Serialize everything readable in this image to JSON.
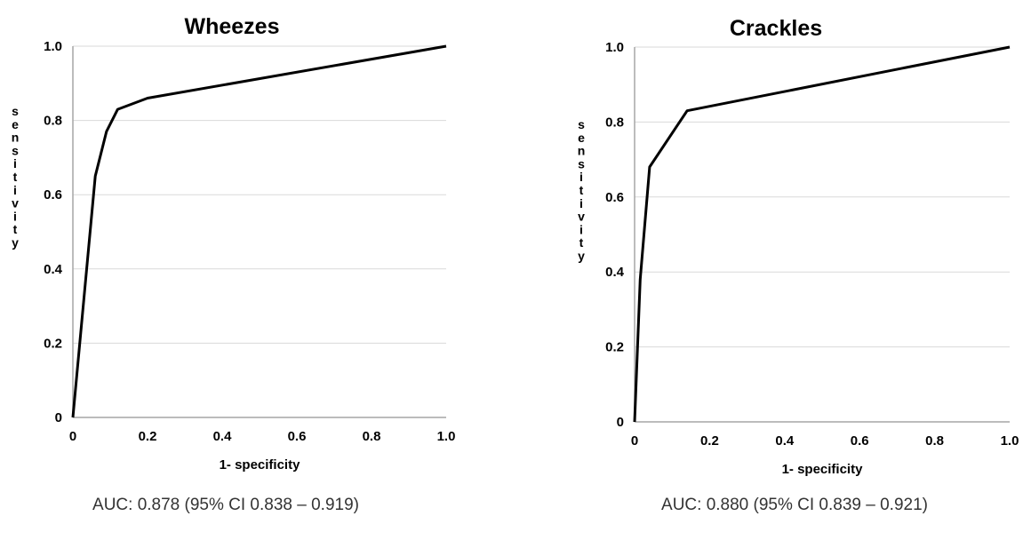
{
  "chart_data": [
    {
      "type": "line",
      "title": "Wheezes",
      "xlabel": "1- specificity",
      "ylabel": "sensitivity",
      "xlim": [
        0,
        1
      ],
      "ylim": [
        0,
        1
      ],
      "x_ticks": [
        "0",
        "0.2",
        "0.4",
        "0.6",
        "0.8",
        "1.0"
      ],
      "y_ticks": [
        "0",
        "0.2",
        "0.4",
        "0.6",
        "0.8",
        "1.0"
      ],
      "grid": "horizontal",
      "series": [
        {
          "x": [
            0,
            0.06,
            0.09,
            0.11,
            0.12,
            0.2,
            1.0
          ],
          "y": [
            0,
            0.65,
            0.77,
            0.81,
            0.83,
            0.86,
            1.0
          ]
        }
      ],
      "caption": "AUC: 0.878 (95% CI 0.838 – 0.919)"
    },
    {
      "type": "line",
      "title": "Crackles",
      "xlabel": "1- specificity",
      "ylabel": "sensitivity",
      "xlim": [
        0,
        1
      ],
      "ylim": [
        0,
        1
      ],
      "x_ticks": [
        "0",
        "0.2",
        "0.4",
        "0.6",
        "0.8",
        "1.0"
      ],
      "y_ticks": [
        "0",
        "0.2",
        "0.4",
        "0.6",
        "0.8",
        "1.0"
      ],
      "grid": "horizontal",
      "series": [
        {
          "x": [
            0,
            0.015,
            0.04,
            0.14,
            1.0
          ],
          "y": [
            0,
            0.38,
            0.68,
            0.83,
            1.0
          ]
        }
      ],
      "caption": "AUC: 0.880 (95% CI 0.839 – 0.921)"
    }
  ]
}
